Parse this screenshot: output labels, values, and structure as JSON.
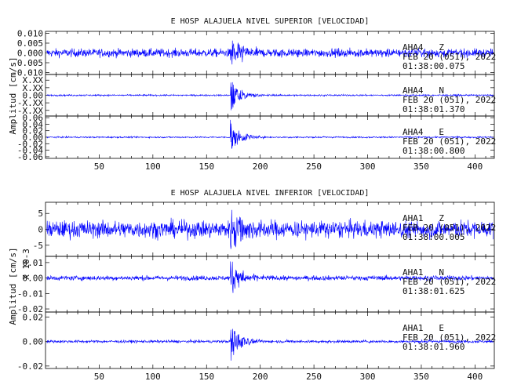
{
  "chart_data": [
    {
      "type": "line",
      "title": "E HOSP ALAJUELA NIVEL SUPERIOR [VELOCIDAD]",
      "ylabel": "Amplitud [cm/s]",
      "xlabel": "",
      "xlim": [
        0,
        418
      ],
      "xticks": [
        50,
        100,
        150,
        200,
        250,
        300,
        350,
        400
      ],
      "grid": false,
      "panels": [
        {
          "channel": "AHA4   Z",
          "date": "FEB 20 (051), 2022",
          "time": "01:38:00.075",
          "ylim": [
            -0.011,
            0.011
          ],
          "yticks": [
            {
              "v": 0.01,
              "label": "0.010"
            },
            {
              "v": 0.005,
              "label": "0.005"
            },
            {
              "v": 0.0,
              "label": "0.000"
            },
            {
              "v": -0.005,
              "label": "-0.005"
            },
            {
              "v": -0.01,
              "label": "-0.010"
            }
          ],
          "noise": 0.0015,
          "event_peak": 0.0095,
          "event_start": 172,
          "decay": 14
        },
        {
          "channel": "AHA4   N",
          "date": "FEB 20 (051), 2022",
          "time": "01:38:01.370",
          "ylim": [
            -0.055,
            0.055
          ],
          "yticks": [
            {
              "v": 0.04,
              "label": "X.XX"
            },
            {
              "v": 0.02,
              "label": "X.XX"
            },
            {
              "v": 0.0,
              "label": "0.00"
            },
            {
              "v": -0.02,
              "label": "-X.XX"
            },
            {
              "v": -0.04,
              "label": "-X.XX"
            }
          ],
          "noise": 0.0015,
          "event_peak": 0.045,
          "event_start": 172,
          "decay": 11
        },
        {
          "channel": "AHA4   E",
          "date": "FEB 20 (051), 2022",
          "time": "01:38:00.800",
          "ylim": [
            -0.065,
            0.065
          ],
          "yticks": [
            {
              "v": 0.06,
              "label": "0.06"
            },
            {
              "v": 0.04,
              "label": "0.04"
            },
            {
              "v": 0.02,
              "label": "0.02"
            },
            {
              "v": 0.0,
              "label": "0.00"
            },
            {
              "v": -0.02,
              "label": "-0.02"
            },
            {
              "v": -0.04,
              "label": "-0.04"
            },
            {
              "v": -0.06,
              "label": "-0.06"
            }
          ],
          "noise": 0.0015,
          "event_peak": 0.058,
          "event_start": 172,
          "decay": 10
        }
      ]
    },
    {
      "type": "line",
      "title": "E HOSP ALAJUELA NIVEL INFERIOR [VELOCIDAD]",
      "ylabel": "Amplitud [cm/s]",
      "xlabel": "",
      "xlim": [
        0,
        418
      ],
      "xticks": [
        50,
        100,
        150,
        200,
        250,
        300,
        350,
        400
      ],
      "grid": false,
      "panels": [
        {
          "channel": "AHA1   Z",
          "date": "FEB 20 (051), 2022",
          "time": "01:38:00.005",
          "scale_label": "X 10-3",
          "ylim": [
            -8.5,
            8.5
          ],
          "yticks": [
            {
              "v": 5,
              "label": "5"
            },
            {
              "v": 0,
              "label": "0"
            },
            {
              "v": -5,
              "label": "-5"
            }
          ],
          "noise": 1.9,
          "event_peak": 8,
          "event_start": 172,
          "decay": 16
        },
        {
          "channel": "AHA1   N",
          "date": "FEB 20 (051), 2022",
          "time": "01:38:01.625",
          "ylim": [
            -0.022,
            0.014
          ],
          "yticks": [
            {
              "v": 0.01,
              "label": "0.01"
            },
            {
              "v": 0.0,
              "label": "0.00"
            },
            {
              "v": -0.01,
              "label": "-0.01"
            },
            {
              "v": -0.02,
              "label": "-0.02"
            }
          ],
          "noise": 0.0011,
          "event_peak": 0.013,
          "event_start": 172,
          "decay": 12
        },
        {
          "channel": "AHA1   E",
          "date": "FEB 20 (051), 2022",
          "time": "01:38:01.960",
          "ylim": [
            -0.022,
            0.024
          ],
          "yticks": [
            {
              "v": 0.02,
              "label": "0.02"
            },
            {
              "v": 0.0,
              "label": "0.00"
            },
            {
              "v": -0.02,
              "label": "-0.02"
            }
          ],
          "noise": 0.0008,
          "event_peak": 0.021,
          "event_start": 172,
          "decay": 9
        }
      ]
    }
  ],
  "colors": {
    "trace": "#0000ff",
    "axes": "#000000",
    "background": "#ffffff"
  }
}
